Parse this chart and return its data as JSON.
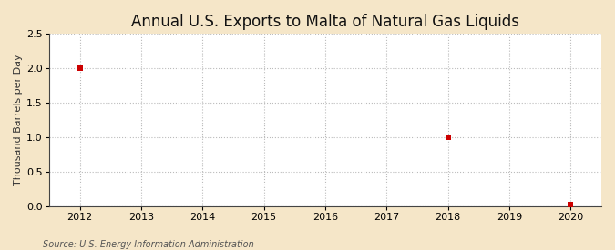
{
  "title": "Annual U.S. Exports to Malta of Natural Gas Liquids",
  "ylabel": "Thousand Barrels per Day",
  "source_text": "Source: U.S. Energy Information Administration",
  "background_color": "#f5e6c8",
  "plot_bg_color": "#ffffff",
  "xlim": [
    2011.5,
    2020.5
  ],
  "ylim": [
    0.0,
    2.5
  ],
  "yticks": [
    0.0,
    0.5,
    1.0,
    1.5,
    2.0,
    2.5
  ],
  "xticks": [
    2012,
    2013,
    2014,
    2015,
    2016,
    2017,
    2018,
    2019,
    2020
  ],
  "data_years": [
    2012,
    2018,
    2020
  ],
  "data_values": [
    2.0,
    1.0,
    0.02
  ],
  "marker_color": "#cc0000",
  "marker_style": "s",
  "marker_size": 4,
  "grid_color": "#aaaaaa",
  "grid_style": "--",
  "grid_alpha": 0.8,
  "title_fontsize": 12,
  "axis_label_fontsize": 8,
  "tick_fontsize": 8,
  "source_fontsize": 7
}
